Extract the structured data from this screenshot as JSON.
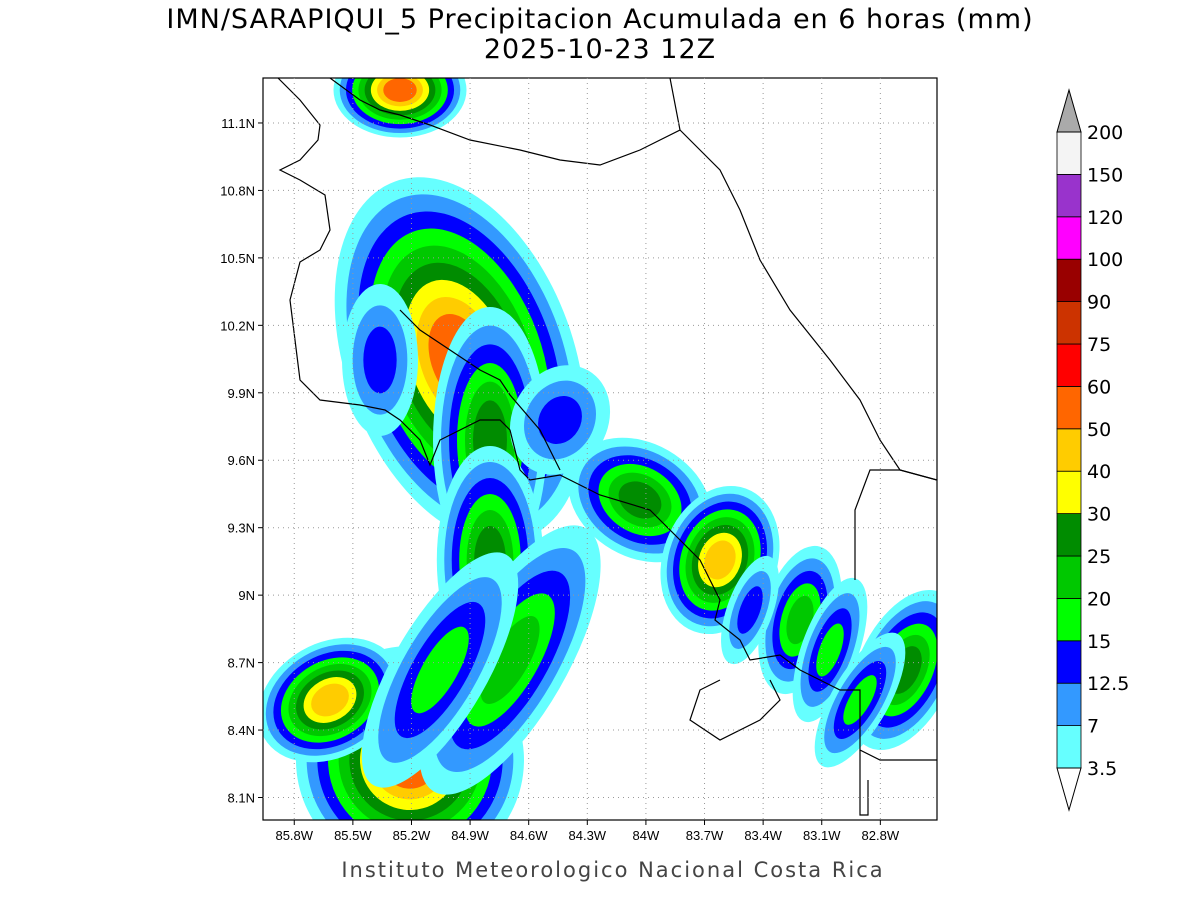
{
  "title": "IMN/SARAPIQUI_5 Precipitacion Acumulada en 6 horas (mm)",
  "subtitle": "2025-10-23 12Z",
  "footer": "Instituto Meteorologico Nacional Costa Rica",
  "map": {
    "xlim": [
      -85.96,
      -82.51
    ],
    "ylim": [
      8.0,
      11.3
    ],
    "xticks": [
      {
        "value": -85.8,
        "label": "85.8W"
      },
      {
        "value": -85.5,
        "label": "85.5W"
      },
      {
        "value": -85.2,
        "label": "85.2W"
      },
      {
        "value": -84.9,
        "label": "84.9W"
      },
      {
        "value": -84.6,
        "label": "84.6W"
      },
      {
        "value": -84.3,
        "label": "84.3W"
      },
      {
        "value": -84.0,
        "label": "84W"
      },
      {
        "value": -83.7,
        "label": "83.7W"
      },
      {
        "value": -83.4,
        "label": "83.4W"
      },
      {
        "value": -83.1,
        "label": "83.1W"
      },
      {
        "value": -82.8,
        "label": "82.8W"
      }
    ],
    "yticks": [
      {
        "value": 8.1,
        "label": "8.1N"
      },
      {
        "value": 8.4,
        "label": "8.4N"
      },
      {
        "value": 8.7,
        "label": "8.7N"
      },
      {
        "value": 9.0,
        "label": "9N"
      },
      {
        "value": 9.3,
        "label": "9.3N"
      },
      {
        "value": 9.6,
        "label": "9.6N"
      },
      {
        "value": 9.9,
        "label": "9.9N"
      },
      {
        "value": 10.2,
        "label": "10.2N"
      },
      {
        "value": 10.5,
        "label": "10.5N"
      },
      {
        "value": 10.8,
        "label": "10.8N"
      },
      {
        "value": 11.1,
        "label": "11.1N"
      }
    ],
    "grid": true
  },
  "colorbar": {
    "levels": [
      3.5,
      7,
      12.5,
      15,
      20,
      25,
      30,
      40,
      50,
      60,
      75,
      90,
      100,
      120,
      150,
      200
    ],
    "colors": [
      "#66ffff",
      "#3399ff",
      "#0000ff",
      "#00ff00",
      "#00c800",
      "#008c00",
      "#ffff00",
      "#ffcc00",
      "#ff6600",
      "#ff0000",
      "#cc3300",
      "#990000",
      "#ff00ff",
      "#9933cc",
      "#f4f4f4"
    ],
    "below_color": "#ffffff",
    "above_color": "#aaaaaa"
  }
}
